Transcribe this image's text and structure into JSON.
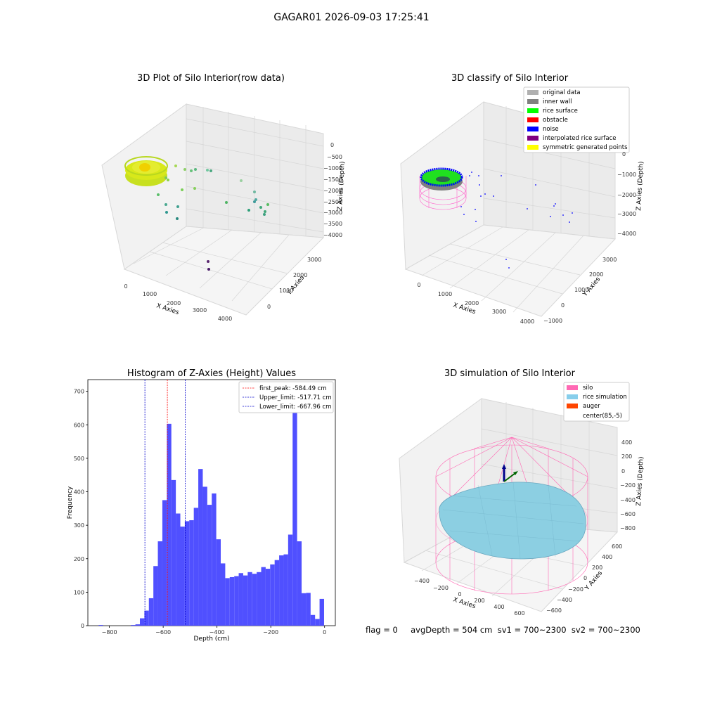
{
  "figure": {
    "title": "GAGAR01 2026-09-03 17:25:41",
    "status_line": "flag = 0     avgDepth = 504 cm  sv1 = 700~2300  sv2 = 700~2300"
  },
  "panels": {
    "raw": {
      "title": "3D Plot of Silo Interior(row data)",
      "xlabel": "X Axies",
      "ylabel": "Y Axies",
      "zlabel": "Z Axies (Depth)",
      "xticks": [
        "0",
        "1000",
        "2000",
        "3000",
        "4000"
      ],
      "yticks": [
        "0",
        "1000",
        "2000",
        "3000"
      ],
      "zticks": [
        "0",
        "−500",
        "−1000",
        "−1500",
        "−2000",
        "−2500",
        "−3000",
        "−3500",
        "−4000"
      ]
    },
    "classify": {
      "title": "3D classify of Silo Interior",
      "xlabel": "X Axies",
      "ylabel": "Y Axies",
      "zlabel": "Z Axies (Depth)",
      "xticks": [
        "0",
        "1000",
        "2000",
        "3000",
        "4000"
      ],
      "yticks": [
        "−1000",
        "0",
        "1000",
        "2000",
        "3000"
      ],
      "zticks": [
        "0",
        "−1000",
        "−2000",
        "−3000",
        "−4000"
      ],
      "legend": [
        {
          "label": "original data",
          "color": "#b0b0b0"
        },
        {
          "label": "inner wall",
          "color": "#808080"
        },
        {
          "label": "rice surface",
          "color": "#00ff00"
        },
        {
          "label": "obstacle",
          "color": "#ff0000"
        },
        {
          "label": "noise",
          "color": "#0000ff"
        },
        {
          "label": "interpolated rice surface",
          "color": "#800080"
        },
        {
          "label": "symmetric generated points",
          "color": "#ffff00"
        }
      ]
    },
    "simulation": {
      "title": "3D simulation of Silo Interior",
      "xlabel": "X Axies",
      "ylabel": "Y Axies",
      "zlabel": "Z Axies (Depth)",
      "xticks": [
        "−400",
        "−200",
        "0",
        "200",
        "400",
        "600"
      ],
      "yticks": [
        "−600",
        "−400",
        "−200",
        "0",
        "200",
        "400",
        "600"
      ],
      "zticks": [
        "400",
        "200",
        "0",
        "−200",
        "−400",
        "−600",
        "−800"
      ],
      "legend": [
        {
          "label": "silo",
          "color": "#ff69b4"
        },
        {
          "label": "rice simulation",
          "color": "#87ceeb"
        },
        {
          "label": "auger",
          "color": "#ff4500"
        },
        {
          "label": "center(85,-5)",
          "color": ""
        }
      ]
    }
  },
  "chart_data": {
    "type": "bar",
    "title": "Histogram of Z-Axies (Height) Values",
    "xlabel": "Depth (cm)",
    "ylabel": "Frequency",
    "xlim": [
      -880,
      40
    ],
    "ylim": [
      0,
      735
    ],
    "xticks": [
      -800,
      -600,
      -400,
      -200,
      0
    ],
    "yticks": [
      0,
      100,
      200,
      300,
      400,
      500,
      600,
      700
    ],
    "bar_color": "#5050ff",
    "bin_width": 16.7,
    "bins": [
      {
        "x": -840,
        "count": 2
      },
      {
        "x": -720,
        "count": 2
      },
      {
        "x": -703.3,
        "count": 4
      },
      {
        "x": -686.6,
        "count": 22
      },
      {
        "x": -669.9,
        "count": 45
      },
      {
        "x": -653.2,
        "count": 82
      },
      {
        "x": -636.5,
        "count": 178
      },
      {
        "x": -619.8,
        "count": 252
      },
      {
        "x": -603.1,
        "count": 375
      },
      {
        "x": -586.4,
        "count": 603
      },
      {
        "x": -569.7,
        "count": 435
      },
      {
        "x": -553.0,
        "count": 335
      },
      {
        "x": -536.3,
        "count": 296
      },
      {
        "x": -519.6,
        "count": 312
      },
      {
        "x": -502.9,
        "count": 315
      },
      {
        "x": -486.2,
        "count": 352
      },
      {
        "x": -469.5,
        "count": 468
      },
      {
        "x": -452.8,
        "count": 415
      },
      {
        "x": -436.1,
        "count": 361
      },
      {
        "x": -419.4,
        "count": 395
      },
      {
        "x": -402.7,
        "count": 258
      },
      {
        "x": -386.0,
        "count": 186
      },
      {
        "x": -369.3,
        "count": 142
      },
      {
        "x": -352.6,
        "count": 145
      },
      {
        "x": -335.9,
        "count": 148
      },
      {
        "x": -319.2,
        "count": 157
      },
      {
        "x": -302.5,
        "count": 150
      },
      {
        "x": -285.8,
        "count": 160
      },
      {
        "x": -269.1,
        "count": 155
      },
      {
        "x": -252.4,
        "count": 160
      },
      {
        "x": -235.7,
        "count": 175
      },
      {
        "x": -219.0,
        "count": 170
      },
      {
        "x": -202.3,
        "count": 183
      },
      {
        "x": -185.6,
        "count": 196
      },
      {
        "x": -168.9,
        "count": 210
      },
      {
        "x": -152.2,
        "count": 213
      },
      {
        "x": -135.5,
        "count": 272
      },
      {
        "x": -118.8,
        "count": 720
      },
      {
        "x": -102.1,
        "count": 252
      },
      {
        "x": -85.4,
        "count": 97
      },
      {
        "x": -68.7,
        "count": 98
      },
      {
        "x": -52.0,
        "count": 32
      },
      {
        "x": -35.3,
        "count": 20
      },
      {
        "x": -18.6,
        "count": 80
      }
    ],
    "vlines": [
      {
        "label": "first_peak: -584.49 cm",
        "x": -584.49,
        "color": "#ff0000"
      },
      {
        "label": "Upper_limit: -517.71 cm",
        "x": -517.71,
        "color": "#0000cc"
      },
      {
        "label": "Lower_limit: -667.96 cm",
        "x": -667.96,
        "color": "#0000cc"
      }
    ],
    "legend_position": "upper right"
  }
}
